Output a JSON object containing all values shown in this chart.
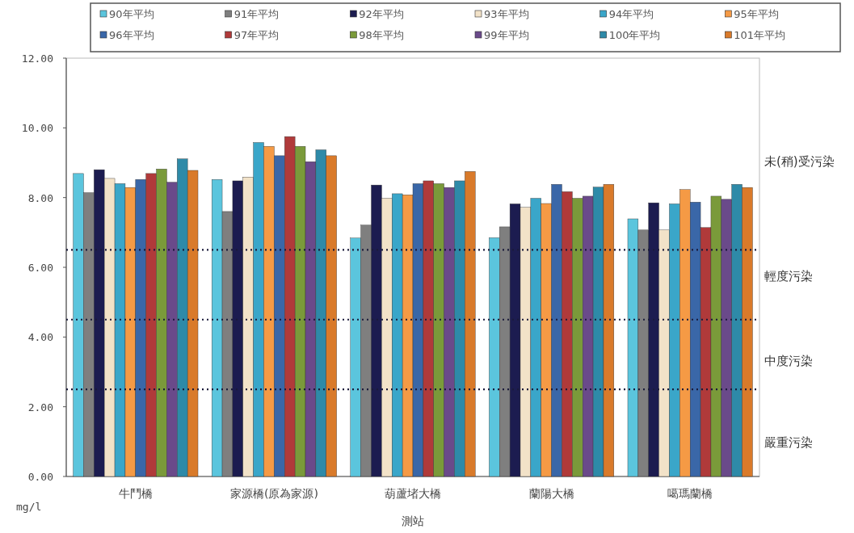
{
  "chart_data": {
    "type": "bar",
    "xlabel": "測站",
    "ylabel": "mg/l",
    "categories": [
      "牛鬥橋",
      "家源橋(原為家源)",
      "葫蘆堵大橋",
      "蘭陽大橋",
      "噶瑪蘭橋"
    ],
    "series": [
      {
        "name": "90年平均",
        "color": "#5bc5dd",
        "values": [
          8.69,
          8.52,
          6.84,
          6.85,
          7.39
        ]
      },
      {
        "name": "91年平均",
        "color": "#7f7f7f",
        "values": [
          8.14,
          7.6,
          7.21,
          7.16,
          7.07
        ]
      },
      {
        "name": "92年平均",
        "color": "#1c1c50",
        "values": [
          8.8,
          8.48,
          8.36,
          7.82,
          7.85
        ]
      },
      {
        "name": "93年平均",
        "color": "#f2e2c8",
        "values": [
          8.55,
          8.59,
          7.98,
          7.72,
          7.07
        ]
      },
      {
        "name": "94年平均",
        "color": "#3aa6c9",
        "values": [
          8.4,
          9.58,
          8.11,
          7.98,
          7.82
        ]
      },
      {
        "name": "95年平均",
        "color": "#f59a45",
        "values": [
          8.29,
          9.47,
          8.08,
          7.83,
          8.23
        ]
      },
      {
        "name": "96年平均",
        "color": "#3a67a8",
        "values": [
          8.52,
          9.2,
          8.4,
          8.38,
          7.87
        ]
      },
      {
        "name": "97年平均",
        "color": "#b03a3a",
        "values": [
          8.69,
          9.75,
          8.48,
          8.17,
          7.14
        ]
      },
      {
        "name": "98年平均",
        "color": "#7a9a3a",
        "values": [
          8.82,
          9.47,
          8.4,
          7.98,
          8.04
        ]
      },
      {
        "name": "99年平均",
        "color": "#6a4a8a",
        "values": [
          8.44,
          9.03,
          8.29,
          8.04,
          7.95
        ]
      },
      {
        "name": "100年平均",
        "color": "#2e8aa8",
        "values": [
          9.11,
          9.37,
          8.48,
          8.3,
          8.38
        ]
      },
      {
        "name": "101年平均",
        "color": "#d97a2a",
        "values": [
          8.78,
          9.2,
          8.75,
          8.38,
          8.29
        ]
      }
    ],
    "ylim": [
      0,
      12
    ],
    "yticks": [
      {
        "value": 0,
        "label": "0.00"
      },
      {
        "value": 2,
        "label": "2.00"
      },
      {
        "value": 4,
        "label": "4.00"
      },
      {
        "value": 6,
        "label": "6.00"
      },
      {
        "value": 8,
        "label": "8.00"
      },
      {
        "value": 10,
        "label": "10.00"
      },
      {
        "value": 12,
        "label": "12.00"
      }
    ],
    "ref_lines": [
      {
        "axis": "y",
        "value": 6.5,
        "color": "#1a1a3a",
        "line_style": "dotted"
      },
      {
        "axis": "y",
        "value": 4.5,
        "color": "#1a1a3a",
        "line_style": "dotted"
      },
      {
        "axis": "y",
        "value": 2.5,
        "color": "#1a1a3a",
        "line_style": "dotted"
      }
    ],
    "annotations": [
      "未(稍)受污染",
      "輕度污染",
      "中度污染",
      "嚴重污染"
    ],
    "legend": "top",
    "grid": false
  }
}
